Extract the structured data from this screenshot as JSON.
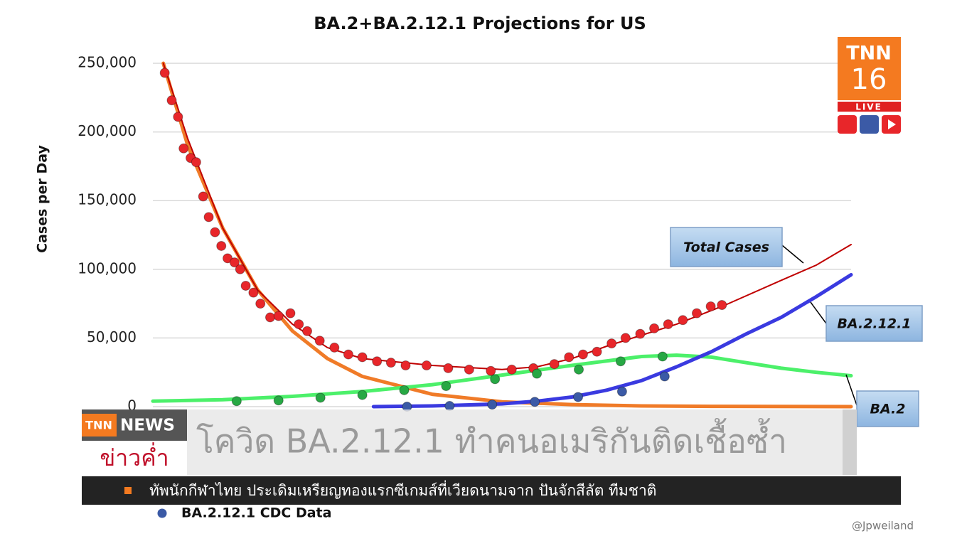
{
  "chart_data": {
    "type": "line",
    "title": "BA.2+BA.2.12.1 Projections for US",
    "y_label": "Cases per Day",
    "xlim": [
      0,
      100
    ],
    "ylim": [
      0,
      250000
    ],
    "yticks": [
      0,
      {
        "value": 50000,
        "label": "50,000"
      },
      {
        "value": 100000,
        "label": "100,000"
      },
      {
        "value": 150000,
        "label": "150,000"
      },
      {
        "value": 200000,
        "label": "200,000"
      },
      {
        "value": 250000,
        "label": "250,000"
      }
    ],
    "grid": true,
    "series": [
      {
        "mode": "line",
        "color": "#f07b28",
        "x": [
          1.5,
          5,
          10,
          15,
          20,
          25,
          30,
          40,
          50,
          60,
          70,
          80,
          100
        ],
        "values": [
          250000,
          190000,
          130000,
          85000,
          55000,
          35000,
          22000,
          9000,
          3500,
          1500,
          500,
          200,
          0
        ]
      },
      {
        "mode": "line",
        "color": "#c00000",
        "x": [
          1.5,
          5,
          10,
          15,
          20,
          25,
          30,
          40,
          50,
          55,
          60,
          65,
          70,
          75,
          82,
          90,
          95,
          100
        ],
        "values": [
          250000,
          195000,
          130000,
          85000,
          60000,
          43000,
          35000,
          30000,
          27000,
          29000,
          35000,
          44000,
          52000,
          60000,
          74000,
          92000,
          103000,
          118000
        ]
      },
      {
        "mode": "line",
        "color": "#4cf06a",
        "x": [
          0,
          10,
          20,
          30,
          40,
          50,
          60,
          70,
          75,
          80,
          85,
          90,
          95,
          100
        ],
        "values": [
          4000,
          5000,
          7500,
          11000,
          16000,
          23000,
          30000,
          36500,
          37500,
          36000,
          32000,
          28000,
          25000,
          22500
        ]
      },
      {
        "mode": "line",
        "color": "#3a3ae0",
        "x": [
          31.6,
          40,
          50,
          55,
          60,
          65,
          70,
          75,
          80,
          85,
          90,
          95,
          100
        ],
        "values": [
          0,
          500,
          2000,
          4000,
          7000,
          12000,
          19000,
          29000,
          40000,
          53000,
          65000,
          80000,
          96000
        ]
      },
      {
        "mode": "markers",
        "color": "#e8262a",
        "x": [
          1.7,
          2.7,
          3.6,
          4.4,
          5.4,
          6.2,
          7.2,
          8.0,
          8.9,
          9.8,
          10.7,
          11.7,
          12.5,
          13.3,
          14.4,
          15.4,
          16.8,
          18.0,
          19.7,
          20.9,
          22.1,
          23.9,
          26.0,
          28.0,
          30.0,
          32.1,
          34.1,
          36.2,
          39.2,
          42.3,
          45.3,
          48.4,
          51.4,
          54.5,
          57.5,
          59.6,
          61.6,
          63.6,
          65.7,
          67.7,
          69.8,
          71.8,
          73.8,
          75.9,
          77.9,
          79.9,
          81.5
        ],
        "values": [
          243000,
          223000,
          211000,
          188000,
          181000,
          178000,
          153000,
          138000,
          127000,
          117000,
          108000,
          105000,
          100000,
          88000,
          83000,
          75000,
          65000,
          66000,
          68000,
          60000,
          55000,
          48000,
          43000,
          38000,
          36000,
          33000,
          32000,
          30000,
          30000,
          28000,
          27000,
          26000,
          27000,
          28000,
          31000,
          36000,
          38000,
          40000,
          46000,
          50000,
          53000,
          57000,
          60000,
          63000,
          68000,
          73000,
          74000
        ]
      },
      {
        "mode": "markers",
        "color": "#27a844",
        "x": [
          12,
          18,
          24,
          30,
          36,
          42,
          49,
          55,
          61,
          67,
          73
        ],
        "values": [
          4000,
          4500,
          6500,
          8500,
          12000,
          15000,
          20000,
          24000,
          27000,
          33000,
          36500
        ]
      },
      {
        "mode": "markers",
        "color": "#3b5aa6",
        "name": "BA.2.12.1 CDC Data",
        "x": [
          36.4,
          42.5,
          48.6,
          54.7,
          60.9,
          67.2,
          73.3
        ],
        "values": [
          0,
          500,
          1500,
          3500,
          7000,
          11000,
          22000
        ]
      }
    ],
    "annotations": [
      "Total Cases",
      "BA.2.12.1",
      "BA.2"
    ]
  },
  "overlay": {
    "logo": {
      "brand": "TNN",
      "channel": "16",
      "status": "LIVE"
    },
    "news": {
      "brand": "TNN",
      "program": "NEWS",
      "show": "ข่าวค่ำ",
      "headline": "โควิด BA.2.12.1 ทำคนอเมริกันติดเชื้อซ้ำ",
      "ticker": "ทัพนักกีฬาไทย ประเดิมเหรียญทองแรกซีเกมส์ที่เวียดนามจาก ปันจักสีลัต ทีมชาติ"
    },
    "credit": "@Jpweiland"
  }
}
